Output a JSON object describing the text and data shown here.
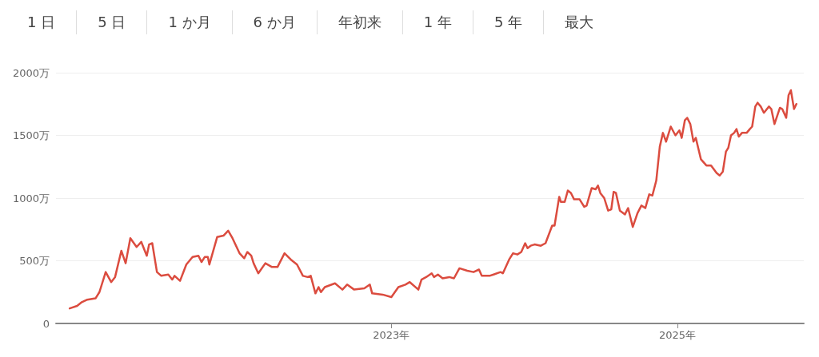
{
  "chart_data": {
    "type": "line",
    "annotations": [
      "1 日",
      "5 日",
      "1 か月",
      "6 か月",
      "年初来",
      "1 年",
      "5 年",
      "最大"
    ],
    "x": [
      "2020-10-01",
      "2020-10-20",
      "2020-11-01",
      "2020-11-15",
      "2020-12-06",
      "2020-12-16",
      "2021-01-01",
      "2021-01-15",
      "2021-01-25",
      "2021-02-10",
      "2021-02-21",
      "2021-03-05",
      "2021-03-21",
      "2021-04-02",
      "2021-04-16",
      "2021-04-22",
      "2021-04-30",
      "2021-05-12",
      "2021-05-23",
      "2021-06-10",
      "2021-06-20",
      "2021-06-26",
      "2021-07-10",
      "2021-07-26",
      "2021-08-11",
      "2021-08-26",
      "2021-09-03",
      "2021-09-11",
      "2021-09-19",
      "2021-09-23",
      "2021-10-13",
      "2021-10-29",
      "2021-11-10",
      "2021-11-21",
      "2021-12-09",
      "2021-12-21",
      "2021-12-29",
      "2022-01-08",
      "2022-01-14",
      "2022-01-26",
      "2022-02-13",
      "2022-03-02",
      "2022-03-16",
      "2022-04-03",
      "2022-04-19",
      "2022-05-05",
      "2022-05-20",
      "2022-06-01",
      "2022-06-09",
      "2022-06-21",
      "2022-06-29",
      "2022-07-05",
      "2022-07-15",
      "2022-08-10",
      "2022-08-29",
      "2022-09-10",
      "2022-09-28",
      "2022-10-24",
      "2022-11-07",
      "2022-11-13",
      "2022-12-10",
      "2023-01-01",
      "2023-01-19",
      "2023-02-06",
      "2023-02-17",
      "2023-03-11",
      "2023-03-19",
      "2023-03-31",
      "2023-04-14",
      "2023-04-20",
      "2023-04-30",
      "2023-05-12",
      "2023-05-29",
      "2023-06-10",
      "2023-06-24",
      "2023-07-14",
      "2023-07-30",
      "2023-08-13",
      "2023-08-20",
      "2023-09-09",
      "2023-09-19",
      "2023-10-07",
      "2023-10-13",
      "2023-10-29",
      "2023-11-08",
      "2023-11-19",
      "2023-11-29",
      "2023-12-09",
      "2023-12-15",
      "2023-12-23",
      "2024-01-02",
      "2024-01-18",
      "2024-01-30",
      "2024-02-16",
      "2024-02-22",
      "2024-03-05",
      "2024-03-09",
      "2024-03-19",
      "2024-03-27",
      "2024-04-04",
      "2024-04-12",
      "2024-04-26",
      "2024-05-08",
      "2024-05-14",
      "2024-05-27",
      "2024-06-06",
      "2024-06-12",
      "2024-06-18",
      "2024-06-28",
      "2024-07-08",
      "2024-07-16",
      "2024-07-22",
      "2024-07-28",
      "2024-08-07",
      "2024-08-20",
      "2024-08-28",
      "2024-09-09",
      "2024-09-21",
      "2024-10-01",
      "2024-10-11",
      "2024-10-21",
      "2024-10-29",
      "2024-11-08",
      "2024-11-17",
      "2024-11-25",
      "2024-12-03",
      "2024-12-15",
      "2024-12-27",
      "2025-01-06",
      "2025-01-12",
      "2025-01-20",
      "2025-01-26",
      "2025-02-03",
      "2025-02-11",
      "2025-02-17",
      "2025-03-02",
      "2025-03-16",
      "2025-03-28",
      "2025-04-11",
      "2025-04-19",
      "2025-04-27",
      "2025-05-05",
      "2025-05-11",
      "2025-05-18",
      "2025-05-26",
      "2025-06-01",
      "2025-06-07",
      "2025-06-15",
      "2025-06-27",
      "2025-07-05",
      "2025-07-11",
      "2025-07-19",
      "2025-07-25",
      "2025-08-02",
      "2025-08-10",
      "2025-08-23",
      "2025-08-29",
      "2025-09-06",
      "2025-09-20",
      "2025-09-26",
      "2025-10-06",
      "2025-10-12",
      "2025-10-18",
      "2025-10-26",
      "2025-11-01"
    ],
    "series": [
      {
        "color": "#db4c3f",
        "values": [
          120,
          140,
          170,
          190,
          200,
          250,
          410,
          330,
          370,
          580,
          480,
          680,
          610,
          650,
          540,
          630,
          640,
          410,
          380,
          390,
          350,
          380,
          340,
          470,
          530,
          540,
          490,
          530,
          530,
          470,
          690,
          700,
          740,
          680,
          560,
          520,
          570,
          540,
          480,
          400,
          480,
          450,
          450,
          560,
          510,
          470,
          380,
          370,
          380,
          240,
          290,
          250,
          290,
          320,
          270,
          310,
          270,
          280,
          310,
          240,
          230,
          210,
          290,
          310,
          330,
          270,
          350,
          370,
          400,
          370,
          390,
          360,
          370,
          360,
          440,
          420,
          410,
          430,
          380,
          380,
          390,
          410,
          400,
          510,
          560,
          550,
          570,
          640,
          600,
          620,
          630,
          620,
          640,
          780,
          780,
          1010,
          970,
          970,
          1060,
          1040,
          990,
          990,
          930,
          940,
          1080,
          1070,
          1100,
          1040,
          1000,
          900,
          910,
          1050,
          1040,
          900,
          870,
          920,
          770,
          880,
          940,
          920,
          1030,
          1020,
          1140,
          1410,
          1520,
          1450,
          1570,
          1500,
          1540,
          1480,
          1620,
          1640,
          1590,
          1450,
          1480,
          1310,
          1260,
          1260,
          1200,
          1180,
          1210,
          1370,
          1400,
          1500,
          1520,
          1550,
          1490,
          1520,
          1520,
          1550,
          1570,
          1730,
          1760,
          1730,
          1680,
          1730,
          1710,
          1590,
          1720,
          1710,
          1640,
          1820,
          1860,
          1710,
          1750
        ]
      }
    ],
    "xlim": [
      "2020-08-27",
      "2025-11-20"
    ],
    "xticks": [
      {
        "value": "2023-01-01",
        "label": "2023年"
      },
      {
        "value": "2025-01-01",
        "label": "2025年"
      }
    ],
    "ylim": [
      0,
      2000
    ],
    "yticks": [
      0,
      {
        "value": 500,
        "label": "500万"
      },
      {
        "value": 1000,
        "label": "1000万"
      },
      {
        "value": 1500,
        "label": "1500万"
      },
      {
        "value": 2000,
        "label": "2000万"
      }
    ],
    "grid": "y",
    "marker": "none",
    "line_style": "solid"
  }
}
